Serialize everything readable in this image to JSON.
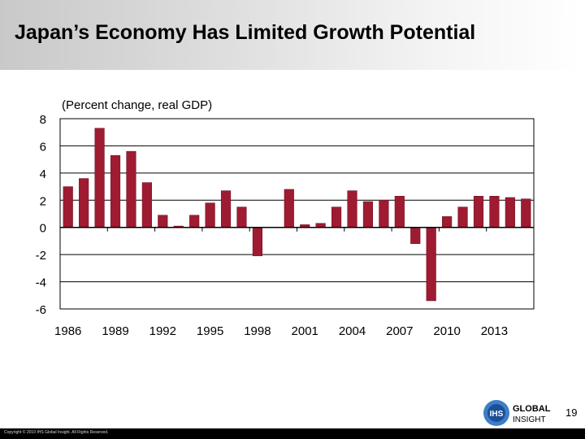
{
  "slide": {
    "title": "Japan’s Economy Has Limited Growth Potential",
    "page_number": "19",
    "copyright": "Copyright © 2010 IHS Global Insight. All Rights Reserved."
  },
  "logo": {
    "mark_text": "IHS",
    "line1": "GLOBAL",
    "line2": "INSIGHT",
    "colors": {
      "outer": "#3d7fc6",
      "inner": "#1c4f96"
    }
  },
  "chart_data": {
    "type": "bar",
    "subtitle": "(Percent change, real GDP)",
    "x": [
      1986,
      1987,
      1988,
      1989,
      1990,
      1991,
      1992,
      1993,
      1994,
      1995,
      1996,
      1997,
      1998,
      1999,
      2000,
      2001,
      2002,
      2003,
      2004,
      2005,
      2006,
      2007,
      2008,
      2009,
      2010,
      2011,
      2012,
      2013,
      2014,
      2015
    ],
    "values": [
      3.0,
      3.6,
      7.3,
      5.3,
      5.6,
      3.3,
      0.9,
      0.1,
      0.9,
      1.8,
      2.7,
      1.5,
      -2.1,
      0.0,
      2.8,
      0.2,
      0.3,
      1.5,
      2.7,
      1.9,
      2.0,
      2.3,
      -1.2,
      -5.4,
      0.8,
      1.5,
      2.3,
      2.3,
      2.2,
      2.1
    ],
    "x_tick_labels": [
      "1986",
      "1989",
      "1992",
      "1995",
      "1998",
      "2001",
      "2004",
      "2007",
      "2010",
      "2013"
    ],
    "y_tick_labels": [
      "8",
      "6",
      "4",
      "2",
      "0",
      "-2",
      "-4",
      "-6"
    ],
    "ylim": [
      -6,
      8
    ],
    "xlabel": "",
    "ylabel": "",
    "grid": "horizontal",
    "colors": {
      "bar": "#9e1b32",
      "bar_outline": "#6e0f20",
      "grid": "#000000"
    }
  }
}
